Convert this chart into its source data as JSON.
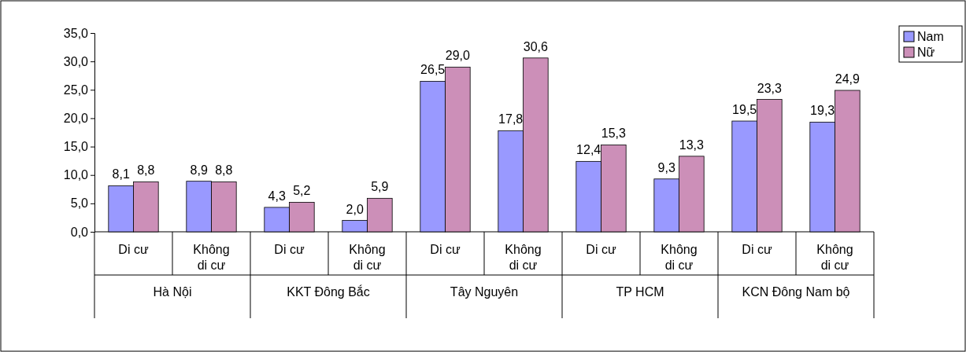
{
  "chart_data": {
    "type": "bar",
    "categories": [
      "Di cư",
      "Không di cư",
      "Di cư",
      "Không di cư",
      "Di cư",
      "Không di cư",
      "Di cư",
      "Không di cư",
      "Di cư",
      "Không di cư"
    ],
    "annotations": [
      "Hà Nội",
      "KKT Đông Bắc",
      "Tây Nguyên",
      "TP HCM",
      "KCN Đông Nam bộ"
    ],
    "series": [
      {
        "name": "Nam",
        "color": "#9999ff",
        "values": [
          8.1,
          8.9,
          4.3,
          2.0,
          26.5,
          17.8,
          12.4,
          9.3,
          19.5,
          19.3
        ],
        "value_labels": [
          "8,1",
          "8,9",
          "4,3",
          "2,0",
          "26,5",
          "17,8",
          "12,4",
          "9,3",
          "19,5",
          "19,3"
        ]
      },
      {
        "name": "Nữ",
        "color": "#cc8fb8",
        "values": [
          8.8,
          8.8,
          5.2,
          5.9,
          29.0,
          30.6,
          15.3,
          13.3,
          23.3,
          24.9
        ],
        "value_labels": [
          "8,8",
          "8,8",
          "5,2",
          "5,9",
          "29,0",
          "30,6",
          "15,3",
          "13,3",
          "23,3",
          "24,9"
        ]
      }
    ],
    "ylim": [
      0,
      35
    ],
    "yticks": [
      {
        "value": 0,
        "label": "0,0"
      },
      {
        "value": 5,
        "label": "5,0"
      },
      {
        "value": 10,
        "label": "10,0"
      },
      {
        "value": 15,
        "label": "15,0"
      },
      {
        "value": 20,
        "label": "20,0"
      },
      {
        "value": 25,
        "label": "25,0"
      },
      {
        "value": 30,
        "label": "30,0"
      },
      {
        "value": 35,
        "label": "35,0"
      }
    ],
    "legend": "right"
  }
}
